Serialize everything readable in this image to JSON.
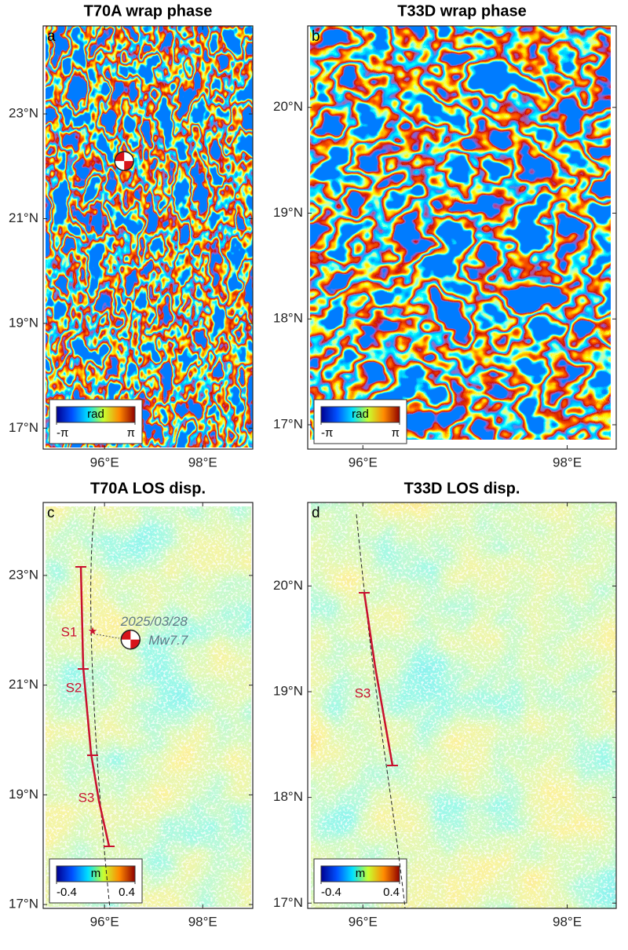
{
  "panels": [
    {
      "type": "wrap-phase",
      "title": "T70A wrap phase",
      "letter": "a",
      "xlim": [
        94.75,
        99.02
      ],
      "ylim": [
        16.6,
        24.68
      ],
      "xticks": [
        {
          "value": 96,
          "label": "96°E"
        },
        {
          "value": 98,
          "label": "98°E"
        }
      ],
      "yticks": [
        {
          "value": 17,
          "label": "17°N"
        },
        {
          "value": 19,
          "label": "19°N"
        },
        {
          "value": 21,
          "label": "21°N"
        },
        {
          "value": 23,
          "label": "23°N"
        }
      ],
      "colorbar": {
        "unit": "rad",
        "clim": [
          -3.1416,
          3.1416
        ],
        "ticks": [
          {
            "value": -3.1416,
            "label": "-π"
          },
          {
            "value": 3.1416,
            "label": "π"
          }
        ]
      },
      "event": {
        "lon": 96.4,
        "lat": 22.1
      }
    },
    {
      "type": "wrap-phase",
      "title": "T33D wrap phase",
      "letter": "b",
      "xlim": [
        95.46,
        98.48
      ],
      "ylim": [
        16.77,
        20.77
      ],
      "xticks": [
        {
          "value": 96,
          "label": "96°E"
        },
        {
          "value": 98,
          "label": "98°E"
        }
      ],
      "yticks": [
        {
          "value": 17,
          "label": "17°N"
        },
        {
          "value": 18,
          "label": "18°N"
        },
        {
          "value": 19,
          "label": "19°N"
        },
        {
          "value": 20,
          "label": "20°N"
        }
      ],
      "colorbar": {
        "unit": "rad",
        "clim": [
          -3.1416,
          3.1416
        ],
        "ticks": [
          {
            "value": -3.1416,
            "label": "-π"
          },
          {
            "value": 3.1416,
            "label": "π"
          }
        ]
      }
    },
    {
      "type": "los-disp",
      "title": "T70A LOS disp.",
      "letter": "c",
      "xlim": [
        94.75,
        99.02
      ],
      "ylim": [
        16.93,
        24.33
      ],
      "xticks": [
        {
          "value": 96,
          "label": "96°E"
        },
        {
          "value": 98,
          "label": "98°E"
        }
      ],
      "yticks": [
        {
          "value": 17,
          "label": "17°N"
        },
        {
          "value": 19,
          "label": "19°N"
        },
        {
          "value": 21,
          "label": "21°N"
        },
        {
          "value": 23,
          "label": "23°N"
        }
      ],
      "colorbar": {
        "unit": "m",
        "clim": [
          -0.4,
          0.4
        ],
        "ticks": [
          -0.4,
          0.4
        ]
      },
      "event": {
        "lon": 96.53,
        "lat": 21.83
      },
      "event_label": {
        "date": "2025/03/28",
        "magnitude": "Mw7.7"
      },
      "segments": [
        "S1",
        "S2",
        "S3"
      ]
    },
    {
      "type": "los-disp",
      "title": "T33D LOS disp.",
      "letter": "d",
      "xlim": [
        95.46,
        98.48
      ],
      "ylim": [
        16.95,
        20.79
      ],
      "xticks": [
        {
          "value": 96,
          "label": "96°E"
        },
        {
          "value": 98,
          "label": "98°E"
        }
      ],
      "yticks": [
        {
          "value": 17,
          "label": "17°N"
        },
        {
          "value": 18,
          "label": "18°N"
        },
        {
          "value": 19,
          "label": "19°N"
        },
        {
          "value": 20,
          "label": "20°N"
        }
      ],
      "colorbar": {
        "unit": "m",
        "clim": [
          -0.4,
          0.4
        ],
        "ticks": [
          -0.4,
          0.4
        ]
      },
      "segments": [
        "S3"
      ]
    }
  ]
}
